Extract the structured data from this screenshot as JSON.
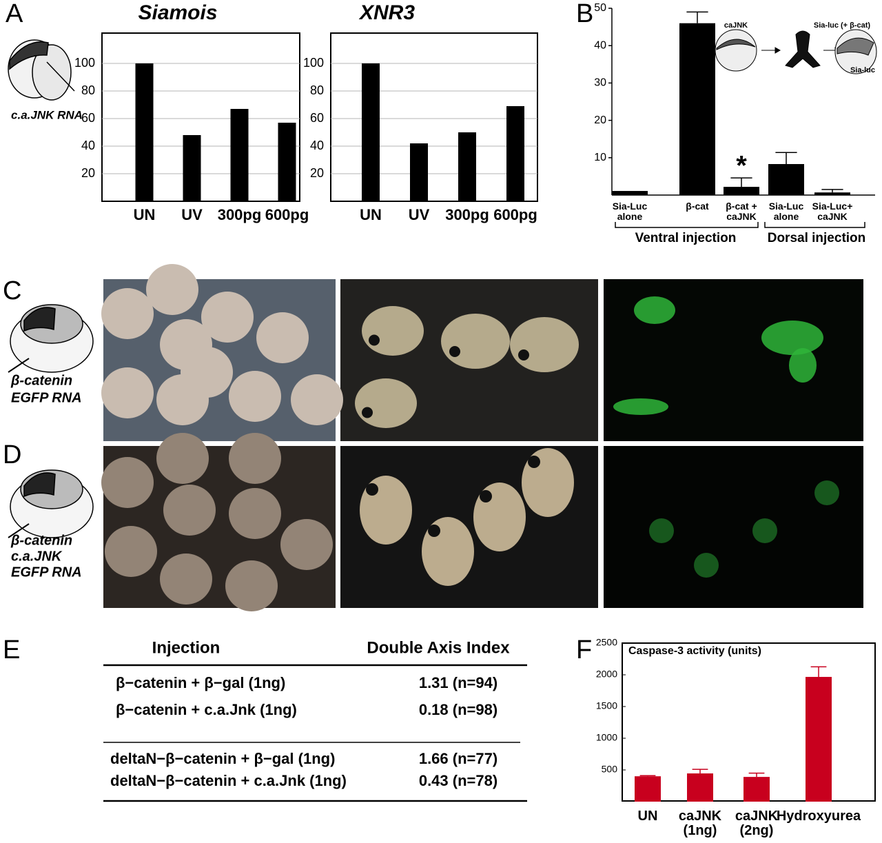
{
  "panel_labels": {
    "a": "A",
    "b": "B",
    "c": "C",
    "d": "D",
    "e": "E",
    "f": "F"
  },
  "panel_a_injection": "c.a.JNK RNA",
  "chart_data": [
    {
      "type": "bar",
      "title": "Siamois",
      "categories": [
        "UN",
        "UV",
        "300pg",
        "600pg"
      ],
      "values": [
        100,
        48,
        67,
        57
      ],
      "color": "#000000",
      "ylim": [
        0,
        122
      ],
      "yticks": [
        20,
        40,
        60,
        80,
        100
      ],
      "grid": true
    },
    {
      "type": "bar",
      "title": "XNR3",
      "categories": [
        "UN",
        "UV",
        "300pg",
        "600pg"
      ],
      "values": [
        100,
        42,
        50,
        69
      ],
      "color": "#000000",
      "ylim": [
        0,
        122
      ],
      "yticks": [
        20,
        40,
        60,
        80,
        100
      ],
      "grid": true
    },
    {
      "type": "bar",
      "categories": [
        "Sia-Luc alone",
        "β-cat",
        "β-cat + caJNK",
        "Sia-Luc alone",
        "Sia-Luc+ caJNK"
      ],
      "values": [
        1.1,
        46,
        2.2,
        8.3,
        0.7
      ],
      "errors": [
        null,
        3,
        2.4,
        3.1,
        0.8
      ],
      "color": "#000000",
      "ylim": [
        0,
        50
      ],
      "yticks": [
        10,
        20,
        30,
        40,
        50
      ],
      "group_labels": [
        "Ventral injection",
        "Dorsal injection"
      ],
      "annotations": [
        "*"
      ],
      "inset_labels": [
        "caJNK",
        "Sia-luc (+ β-cat)",
        "Sia-luc"
      ]
    },
    {
      "type": "bar",
      "title": "Caspase-3 activity (units)",
      "categories": [
        "UN",
        "caJNK (1ng)",
        "caJNK (2ng)",
        "Hydroxyurea"
      ],
      "values": [
        400,
        445,
        390,
        1967
      ],
      "errors": [
        10,
        65,
        60,
        160
      ],
      "color": "#c8001e",
      "ylim": [
        0,
        2500
      ],
      "yticks": [
        500,
        1000,
        1500,
        2000,
        2500
      ]
    }
  ],
  "panel_c_injection": [
    "β-catenin",
    "EGFP RNA"
  ],
  "panel_d_injection": [
    "β-catenin",
    "c.a.JNK",
    "EGFP RNA"
  ],
  "table": {
    "header": [
      "Injection",
      "Double Axis Index"
    ],
    "rows": [
      [
        "β−catenin + β−gal (1ng)",
        "1.31 (n=94)"
      ],
      [
        "β−catenin + c.a.Jnk (1ng)",
        "0.18 (n=98)"
      ],
      [
        "deltaN−β−catenin + β−gal (1ng)",
        "1.66 (n=77)"
      ],
      [
        "deltaN−β−catenin + c.a.Jnk (1ng)",
        "0.43 (n=78)"
      ]
    ]
  }
}
